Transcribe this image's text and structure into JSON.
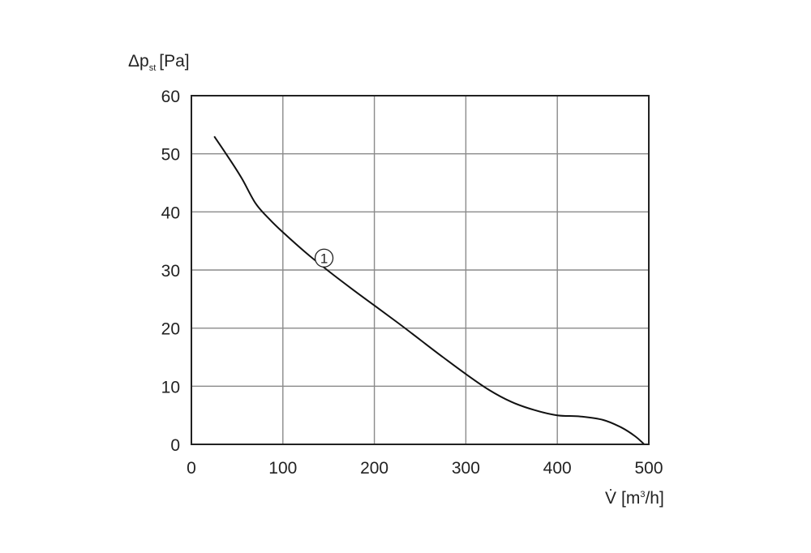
{
  "chart_data": {
    "type": "line",
    "ylabel": {
      "main": "Δp",
      "sub": "st",
      "unit": "[Pa]"
    },
    "xlabel": {
      "main": "V̇",
      "unit_before": "[m",
      "sup": "3",
      "unit_after": "/h]"
    },
    "xlim": [
      0,
      500
    ],
    "ylim": [
      0,
      60
    ],
    "x_ticks": [
      0,
      100,
      200,
      300,
      400,
      500
    ],
    "y_ticks": [
      0,
      10,
      20,
      30,
      40,
      50,
      60
    ],
    "grid": true,
    "series": [
      {
        "label": "1",
        "color": "#111111",
        "x": [
          25,
          40,
          55,
          70,
          85,
          100,
          125,
          150,
          175,
          200,
          225,
          250,
          275,
          300,
          325,
          350,
          375,
          400,
          425,
          450,
          470,
          485,
          495
        ],
        "y": [
          53,
          49.5,
          45.8,
          41.5,
          38.8,
          36.5,
          33,
          29.8,
          26.8,
          23.9,
          21,
          18,
          15,
          12.1,
          9.4,
          7.3,
          5.9,
          5.0,
          4.8,
          4.2,
          2.9,
          1.4,
          0
        ]
      }
    ]
  }
}
